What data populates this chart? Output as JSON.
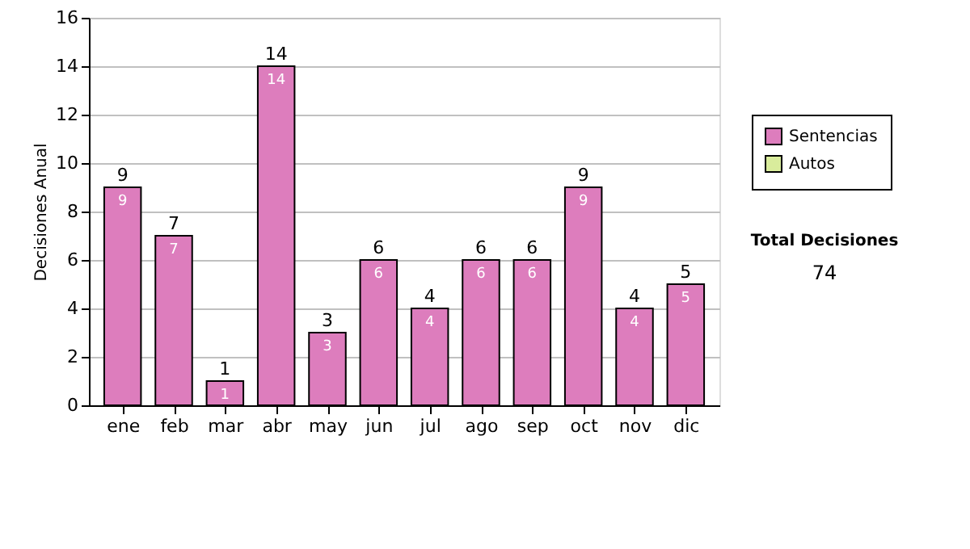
{
  "chart_data": {
    "type": "bar",
    "ylabel": "Decisiones Anual",
    "categories": [
      "ene",
      "feb",
      "mar",
      "abr",
      "may",
      "jun",
      "jul",
      "ago",
      "sep",
      "oct",
      "nov",
      "dic"
    ],
    "series": [
      {
        "name": "Sentencias",
        "color": "#dd7dbd",
        "values": [
          9,
          7,
          1,
          14,
          3,
          6,
          4,
          6,
          6,
          9,
          4,
          5
        ],
        "value_labels": [
          "9",
          "7",
          "1",
          "14",
          "3",
          "6",
          "4",
          "6",
          "6",
          "9",
          "4",
          "5"
        ]
      },
      {
        "name": "Autos",
        "color": "#d9ec9c",
        "values": [
          null,
          null,
          null,
          null,
          null,
          null,
          null,
          null,
          null,
          null,
          null,
          null
        ]
      }
    ],
    "stacked": true,
    "totals": [
      "9",
      "7",
      "1",
      "14",
      "3",
      "6",
      "4",
      "6",
      "6",
      "9",
      "4",
      "5"
    ],
    "ylim": [
      0,
      16
    ],
    "yticks": [
      0,
      2,
      4,
      6,
      8,
      10,
      12,
      14,
      16
    ],
    "grid": "y",
    "legend": "right",
    "annotations": [
      "Total Decisiones",
      "74"
    ]
  }
}
